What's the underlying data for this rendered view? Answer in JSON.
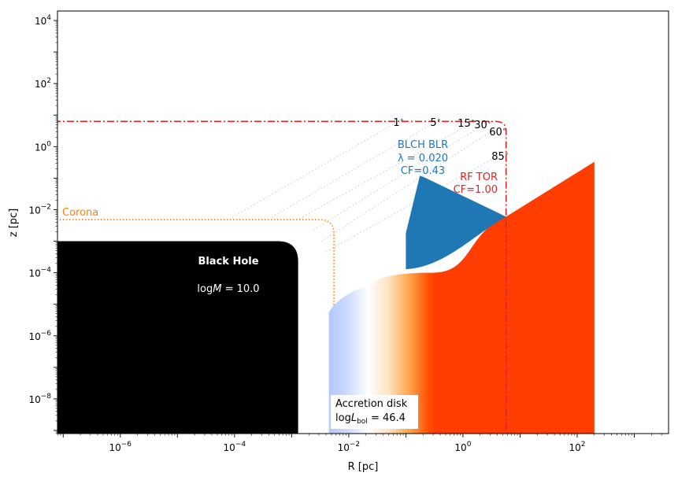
{
  "chart_data": {
    "type": "scatter",
    "xlabel": "R [pc]",
    "ylabel": "z [pc]",
    "xscale": "log",
    "yscale": "log",
    "xlim_log10": [
      -7.1,
      3.6
    ],
    "ylim_log10": [
      -9.1,
      4.3
    ],
    "grid": false,
    "x_tick_exponents": [
      -6,
      -4,
      -2,
      0,
      2
    ],
    "y_tick_exponents": [
      -8,
      -6,
      -4,
      -2,
      0,
      2,
      4
    ],
    "tick_base": "10",
    "regions": {
      "black_hole": {
        "label": "Black Hole",
        "sublabel": "log M = 10.0",
        "sublabel_prefix": "log",
        "sublabel_var": "M",
        "sublabel_value": " = 10.0",
        "color": "#000000",
        "x_max": 0.0013,
        "z_max": 0.001
      },
      "corona": {
        "label": "Corona",
        "color": "#ff7f0e",
        "R_edge": 0.0055,
        "z_top": 0.0048
      },
      "accretion_disk": {
        "label_line1": "Accretion disk",
        "label_line2": "log L_bol = 46.4",
        "label_prefix": "log",
        "label_var": "L",
        "label_sub": "bol",
        "label_value": " = 46.4",
        "R_inner": 0.0045,
        "R_outer": 200,
        "colors": [
          "#a8c0ff",
          "#ffffff",
          "#ffcf99",
          "#ff8c00",
          "#ff4500",
          "#ff3d00"
        ]
      },
      "blr": {
        "label": "BLCH BLR",
        "lambda_label": "λ = 0.020",
        "cf_label": "CF=0.43",
        "color": "#1f77b4",
        "R_in": 0.1,
        "R_peak": 0.2,
        "R_out": 5.7,
        "z_peak": 0.12
      },
      "torus": {
        "label": "RF TOR",
        "cf_label": "CF=1.00",
        "color": "#d62728",
        "R_in": 5.7,
        "z_top": 6.3
      }
    },
    "sightlines": {
      "angles_deg": [
        1,
        5,
        15,
        30,
        60,
        85
      ],
      "color": "#d3d3d3"
    }
  }
}
